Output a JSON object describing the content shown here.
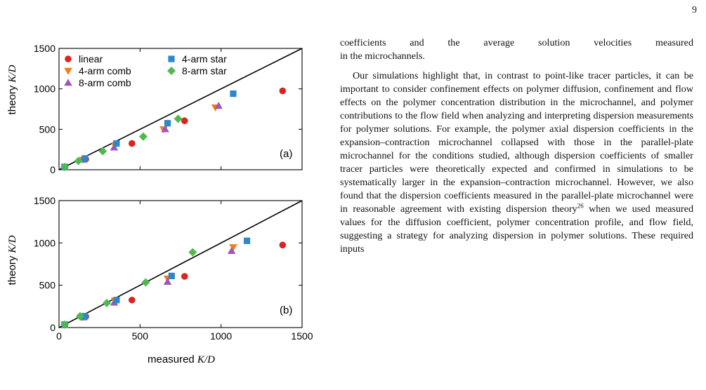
{
  "page_number": "9",
  "axis_labels": {
    "ylabel_text": "theory ",
    "ylabel_math": "K/D",
    "xlabel_text": "measured ",
    "xlabel_math": "K/D"
  },
  "legend": {
    "linear": "linear",
    "comb4": "4-arm comb",
    "comb8": "8-arm comb",
    "star4": "4-arm star",
    "star8": "8-arm star"
  },
  "colors": {
    "linear": "#dd2222",
    "comb4": "#f97b12",
    "comb8": "#9b59b6",
    "star4": "#2f86c8",
    "star8": "#4cbb4c",
    "line": "#000000"
  },
  "chart_data": [
    {
      "type": "scatter",
      "panel_label": "(a)",
      "xlim": [
        0,
        1500
      ],
      "ylim": [
        0,
        1500
      ],
      "xticks": [
        "0",
        "500",
        "1000",
        "1500"
      ],
      "yticks": [
        "0",
        "500",
        "1000",
        "1500"
      ],
      "ylabel": "theory K/D",
      "xlabel": "",
      "reference_line": "y = x",
      "legend_position": "top-left",
      "series": [
        {
          "key": "linear",
          "name": "linear",
          "marker": "circle",
          "points": [
            [
              35,
              30
            ],
            [
              165,
              130
            ],
            [
              450,
              325
            ],
            [
              775,
              605
            ],
            [
              1380,
              975
            ]
          ]
        },
        {
          "key": "comb4",
          "name": "4-arm comb",
          "marker": "triangle-down",
          "points": [
            [
              35,
              35
            ],
            [
              150,
              125
            ],
            [
              345,
              300
            ],
            [
              645,
              500
            ],
            [
              965,
              770
            ]
          ]
        },
        {
          "key": "comb8",
          "name": "8-arm comb",
          "marker": "triangle-up",
          "points": [
            [
              35,
              30
            ],
            [
              145,
              125
            ],
            [
              340,
              275
            ],
            [
              655,
              500
            ],
            [
              985,
              790
            ]
          ]
        },
        {
          "key": "star4",
          "name": "4-arm star",
          "marker": "square",
          "points": [
            [
              35,
              35
            ],
            [
              160,
              140
            ],
            [
              355,
              325
            ],
            [
              670,
              575
            ],
            [
              1075,
              940
            ]
          ]
        },
        {
          "key": "star8",
          "name": "8-arm star",
          "marker": "diamond",
          "points": [
            [
              35,
              35
            ],
            [
              120,
              110
            ],
            [
              270,
              230
            ],
            [
              520,
              410
            ],
            [
              735,
              630
            ]
          ]
        }
      ]
    },
    {
      "type": "scatter",
      "panel_label": "(b)",
      "xlim": [
        0,
        1500
      ],
      "ylim": [
        0,
        1500
      ],
      "xticks": [
        "0",
        "500",
        "1000",
        "1500"
      ],
      "yticks": [
        "0",
        "500",
        "1000",
        "1500"
      ],
      "ylabel": "theory K/D",
      "xlabel": "measured K/D",
      "reference_line": "y = x",
      "series": [
        {
          "key": "linear",
          "name": "linear",
          "marker": "circle",
          "points": [
            [
              35,
              30
            ],
            [
              165,
              130
            ],
            [
              450,
              325
            ],
            [
              775,
              605
            ],
            [
              1380,
              975
            ]
          ]
        },
        {
          "key": "comb4",
          "name": "4-arm comb",
          "marker": "triangle-down",
          "points": [
            [
              35,
              35
            ],
            [
              145,
              125
            ],
            [
              345,
              320
            ],
            [
              670,
              580
            ],
            [
              1075,
              950
            ]
          ]
        },
        {
          "key": "comb8",
          "name": "8-arm comb",
          "marker": "triangle-up",
          "points": [
            [
              35,
              30
            ],
            [
              150,
              120
            ],
            [
              340,
              295
            ],
            [
              670,
              540
            ],
            [
              1065,
              905
            ]
          ]
        },
        {
          "key": "star4",
          "name": "4-arm star",
          "marker": "square",
          "points": [
            [
              35,
              35
            ],
            [
              160,
              135
            ],
            [
              355,
              325
            ],
            [
              695,
              610
            ],
            [
              1160,
              1025
            ]
          ]
        },
        {
          "key": "star8",
          "name": "8-arm star",
          "marker": "diamond",
          "points": [
            [
              35,
              35
            ],
            [
              130,
              135
            ],
            [
              295,
              290
            ],
            [
              535,
              535
            ],
            [
              825,
              890
            ]
          ]
        }
      ]
    }
  ],
  "text": {
    "para1_lines": [
      "coefficients and the average solution velocities measured",
      "in the microchannels."
    ],
    "para2_a": "Our simulations highlight that, in contrast to point-like tracer particles, it can be important to consider confinement effects on polymer diffusion, confinement and flow effects on the polymer concentration distribution in the microchannel, and polymer contributions to the flow field when analyzing and interpreting dispersion measurements for polymer solutions. For example, the polymer axial dispersion coefficients in the expansion–contraction microchannel collapsed with those in the parallel-plate microchannel for the conditions studied, although dispersion coefficients of smaller tracer particles were theoretically expected and confirmed in simulations to be systematically larger in the expansion–contraction microchannel. However, we also found that the dispersion coefficients measured in the parallel-plate microchannel were in reasonable agreement with existing dispersion theory",
    "para2_sup": "26",
    "para2_b": " when we used measured values for the diffusion coefficient, polymer concentration profile, and flow field, suggesting a strategy for analyzing dispersion in polymer solutions. These required inputs"
  }
}
